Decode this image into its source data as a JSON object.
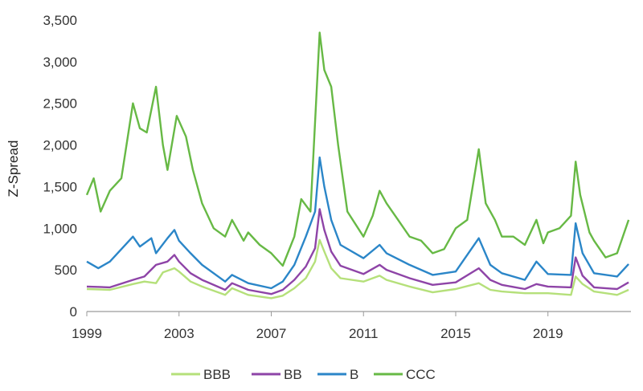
{
  "chart_data": {
    "type": "line",
    "title": "",
    "xlabel": "",
    "ylabel": "Z-Spread",
    "xlim": [
      1999,
      2022.6
    ],
    "ylim": [
      0,
      3500
    ],
    "x_ticks": [
      "1999",
      "2003",
      "2007",
      "2011",
      "2015",
      "2019"
    ],
    "y_ticks": [
      "0",
      "500",
      "1,000",
      "1,500",
      "2,000",
      "2,500",
      "3,000",
      "3,500"
    ],
    "grid": false,
    "legend": "bottom",
    "series": [
      {
        "name": "BBB",
        "color": "#b5e07a",
        "x": [
          1999.0,
          2000.0,
          2001.0,
          2001.5,
          2002.0,
          2002.3,
          2002.8,
          2003.0,
          2003.5,
          2004.0,
          2005.0,
          2005.3,
          2006.0,
          2007.0,
          2007.5,
          2008.0,
          2008.5,
          2008.9,
          2009.1,
          2009.3,
          2009.6,
          2010.0,
          2011.0,
          2011.7,
          2012.0,
          2013.0,
          2014.0,
          2015.0,
          2016.0,
          2016.5,
          2017.0,
          2018.0,
          2019.0,
          2020.0,
          2020.2,
          2020.5,
          2021.0,
          2022.0,
          2022.5
        ],
        "values": [
          270,
          260,
          330,
          360,
          340,
          470,
          520,
          480,
          360,
          300,
          200,
          280,
          200,
          160,
          190,
          280,
          400,
          600,
          860,
          720,
          520,
          400,
          360,
          430,
          380,
          300,
          230,
          270,
          340,
          260,
          240,
          220,
          220,
          200,
          420,
          330,
          240,
          200,
          260
        ]
      },
      {
        "name": "BB",
        "color": "#8e44a7",
        "x": [
          1999.0,
          2000.0,
          2001.0,
          2001.5,
          2002.0,
          2002.5,
          2002.8,
          2003.0,
          2003.5,
          2004.0,
          2005.0,
          2005.3,
          2006.0,
          2007.0,
          2007.5,
          2008.0,
          2008.5,
          2008.9,
          2009.1,
          2009.3,
          2009.6,
          2010.0,
          2011.0,
          2011.7,
          2012.0,
          2013.0,
          2014.0,
          2015.0,
          2016.0,
          2016.5,
          2017.0,
          2018.0,
          2018.5,
          2019.0,
          2020.0,
          2020.2,
          2020.5,
          2021.0,
          2022.0,
          2022.5
        ],
        "values": [
          300,
          290,
          380,
          420,
          560,
          600,
          680,
          600,
          460,
          380,
          260,
          340,
          260,
          210,
          260,
          380,
          540,
          760,
          1230,
          980,
          720,
          550,
          450,
          560,
          500,
          400,
          320,
          350,
          520,
          380,
          320,
          270,
          330,
          300,
          290,
          650,
          430,
          290,
          270,
          350
        ]
      },
      {
        "name": "B",
        "color": "#2b86c8",
        "x": [
          1999.0,
          1999.5,
          2000.0,
          2001.0,
          2001.3,
          2001.8,
          2002.0,
          2002.5,
          2002.8,
          2003.0,
          2003.5,
          2004.0,
          2005.0,
          2005.3,
          2006.0,
          2007.0,
          2007.5,
          2008.0,
          2008.5,
          2008.9,
          2009.1,
          2009.3,
          2009.6,
          2010.0,
          2011.0,
          2011.7,
          2012.0,
          2013.0,
          2014.0,
          2015.0,
          2016.0,
          2016.5,
          2017.0,
          2018.0,
          2018.5,
          2019.0,
          2020.0,
          2020.2,
          2020.5,
          2021.0,
          2022.0,
          2022.5
        ],
        "values": [
          600,
          520,
          600,
          900,
          780,
          880,
          700,
          880,
          980,
          850,
          700,
          560,
          360,
          440,
          340,
          280,
          360,
          560,
          900,
          1200,
          1850,
          1500,
          1100,
          800,
          640,
          800,
          700,
          560,
          440,
          480,
          880,
          560,
          460,
          380,
          600,
          450,
          440,
          1060,
          700,
          460,
          420,
          570
        ]
      },
      {
        "name": "CCC",
        "color": "#67b945",
        "x": [
          1999.0,
          1999.3,
          1999.6,
          2000.0,
          2000.5,
          2001.0,
          2001.3,
          2001.6,
          2002.0,
          2002.3,
          2002.5,
          2002.9,
          2003.3,
          2003.6,
          2004.0,
          2004.5,
          2005.0,
          2005.3,
          2005.8,
          2006.0,
          2006.5,
          2007.0,
          2007.5,
          2008.0,
          2008.3,
          2008.7,
          2009.1,
          2009.3,
          2009.6,
          2009.9,
          2010.3,
          2011.0,
          2011.4,
          2011.7,
          2012.0,
          2012.5,
          2013.0,
          2013.5,
          2014.0,
          2014.5,
          2015.0,
          2015.5,
          2016.0,
          2016.3,
          2016.7,
          2017.0,
          2017.5,
          2018.0,
          2018.5,
          2018.8,
          2019.0,
          2019.5,
          2020.0,
          2020.2,
          2020.4,
          2020.8,
          2021.0,
          2021.5,
          2022.0,
          2022.5
        ],
        "values": [
          1400,
          1600,
          1200,
          1450,
          1600,
          2500,
          2200,
          2150,
          2700,
          2000,
          1700,
          2350,
          2100,
          1700,
          1300,
          1000,
          900,
          1100,
          850,
          950,
          800,
          700,
          550,
          900,
          1350,
          1200,
          3350,
          2900,
          2700,
          2000,
          1200,
          900,
          1150,
          1450,
          1300,
          1100,
          900,
          850,
          700,
          750,
          1000,
          1100,
          1950,
          1300,
          1100,
          900,
          900,
          800,
          1100,
          820,
          950,
          1000,
          1150,
          1800,
          1400,
          950,
          850,
          650,
          700,
          1100
        ]
      }
    ]
  }
}
